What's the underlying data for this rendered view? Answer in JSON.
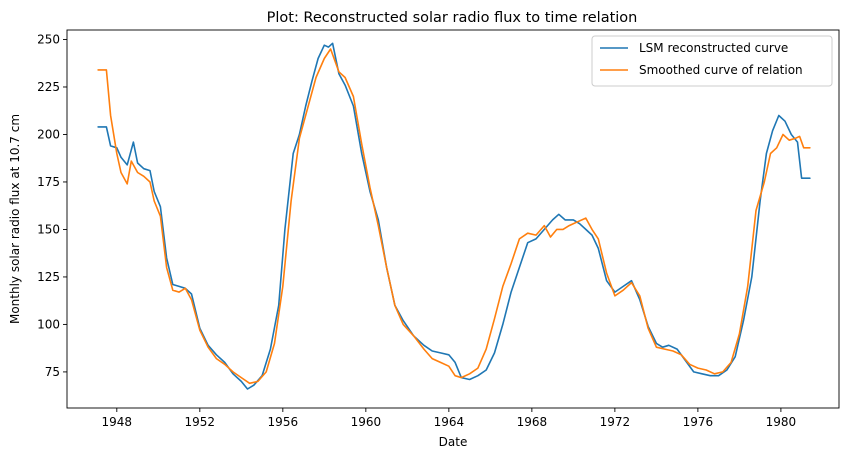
{
  "chart_data": {
    "type": "line",
    "title": "Plot: Reconstructed solar radio flux to time relation",
    "xlabel": "Date",
    "ylabel": "Monthly solar radio flux at 10.7 cm",
    "xlim": [
      1945.6,
      1982.8
    ],
    "ylim": [
      56,
      255
    ],
    "x_ticks": [
      1948,
      1952,
      1956,
      1960,
      1964,
      1968,
      1972,
      1976,
      1980
    ],
    "y_ticks": [
      75,
      100,
      125,
      150,
      175,
      200,
      225,
      250
    ],
    "grid": false,
    "legend_position": "top-right",
    "colors": {
      "series1": "#1f77b4",
      "series2": "#ff7f0e"
    },
    "series": [
      {
        "name": "LSM reconstructed curve",
        "x": [
          1947.1,
          1947.5,
          1947.7,
          1948.0,
          1948.2,
          1948.5,
          1948.8,
          1949.0,
          1949.3,
          1949.6,
          1949.8,
          1950.1,
          1950.4,
          1950.7,
          1951.0,
          1951.3,
          1951.6,
          1952.0,
          1952.4,
          1952.8,
          1953.2,
          1953.6,
          1954.0,
          1954.3,
          1954.6,
          1955.0,
          1955.4,
          1955.8,
          1956.1,
          1956.5,
          1956.8,
          1957.1,
          1957.4,
          1957.7,
          1958.0,
          1958.2,
          1958.4,
          1958.7,
          1959.0,
          1959.4,
          1959.8,
          1960.2,
          1960.6,
          1961.0,
          1961.4,
          1961.8,
          1962.3,
          1962.8,
          1963.2,
          1963.6,
          1964.0,
          1964.3,
          1964.6,
          1965.0,
          1965.4,
          1965.8,
          1966.2,
          1966.6,
          1967.0,
          1967.4,
          1967.8,
          1968.2,
          1968.6,
          1969.0,
          1969.3,
          1969.6,
          1970.0,
          1970.3,
          1970.6,
          1970.9,
          1971.2,
          1971.6,
          1972.0,
          1972.4,
          1972.8,
          1973.2,
          1973.6,
          1974.0,
          1974.3,
          1974.6,
          1975.0,
          1975.4,
          1975.8,
          1976.2,
          1976.6,
          1977.0,
          1977.4,
          1977.8,
          1978.2,
          1978.6,
          1979.0,
          1979.3,
          1979.6,
          1979.9,
          1980.2,
          1980.5,
          1980.8,
          1981.0,
          1981.4
        ],
        "y": [
          204,
          204,
          194,
          193,
          188,
          184,
          196,
          185,
          182,
          181,
          170,
          162,
          135,
          121,
          120,
          119,
          116,
          98,
          89,
          84,
          80,
          74,
          70,
          66,
          68,
          73,
          87,
          110,
          150,
          190,
          200,
          215,
          228,
          240,
          247,
          246,
          248,
          232,
          226,
          215,
          190,
          170,
          155,
          130,
          110,
          102,
          94,
          89,
          86,
          85,
          84,
          80,
          72,
          71,
          73,
          76,
          85,
          100,
          117,
          130,
          143,
          145,
          150,
          155,
          158,
          155,
          155,
          153,
          150,
          147,
          140,
          123,
          117,
          120,
          123,
          113,
          99,
          90,
          88,
          89,
          87,
          81,
          75,
          74,
          73,
          73,
          76,
          83,
          102,
          125,
          165,
          190,
          202,
          210,
          207,
          200,
          196,
          177,
          177
        ]
      },
      {
        "name": "Smoothed curve of relation",
        "x": [
          1947.1,
          1947.5,
          1947.7,
          1948.0,
          1948.2,
          1948.5,
          1948.7,
          1949.0,
          1949.3,
          1949.6,
          1949.8,
          1950.1,
          1950.4,
          1950.7,
          1951.0,
          1951.3,
          1951.6,
          1952.0,
          1952.4,
          1952.8,
          1953.2,
          1953.6,
          1954.0,
          1954.4,
          1954.8,
          1955.2,
          1955.6,
          1956.0,
          1956.4,
          1956.8,
          1957.2,
          1957.6,
          1958.0,
          1958.3,
          1958.7,
          1959.0,
          1959.4,
          1959.8,
          1960.2,
          1960.6,
          1961.0,
          1961.4,
          1961.8,
          1962.3,
          1962.8,
          1963.2,
          1963.6,
          1964.0,
          1964.3,
          1964.6,
          1965.0,
          1965.4,
          1965.8,
          1966.2,
          1966.6,
          1967.0,
          1967.4,
          1967.8,
          1968.2,
          1968.6,
          1968.9,
          1969.2,
          1969.5,
          1969.8,
          1970.2,
          1970.6,
          1970.9,
          1971.2,
          1971.6,
          1972.0,
          1972.4,
          1972.8,
          1973.2,
          1973.6,
          1974.0,
          1974.4,
          1974.8,
          1975.2,
          1975.6,
          1976.0,
          1976.4,
          1976.8,
          1977.2,
          1977.6,
          1978.0,
          1978.4,
          1978.8,
          1979.2,
          1979.5,
          1979.8,
          1980.1,
          1980.4,
          1980.7,
          1980.9,
          1981.1,
          1981.4
        ],
        "y": [
          234,
          234,
          210,
          190,
          180,
          174,
          186,
          180,
          178,
          175,
          165,
          157,
          130,
          118,
          117,
          119,
          113,
          97,
          88,
          82,
          79,
          75,
          72,
          69,
          70,
          75,
          90,
          120,
          165,
          198,
          214,
          230,
          240,
          245,
          233,
          230,
          220,
          195,
          172,
          152,
          130,
          110,
          100,
          94,
          87,
          82,
          80,
          78,
          73,
          72,
          74,
          77,
          87,
          103,
          120,
          132,
          145,
          148,
          147,
          152,
          146,
          150,
          150,
          152,
          154,
          156,
          150,
          145,
          127,
          115,
          118,
          122,
          115,
          98,
          88,
          87,
          86,
          84,
          79,
          77,
          76,
          74,
          75,
          80,
          95,
          120,
          160,
          175,
          190,
          193,
          200,
          197,
          198,
          199,
          193,
          193
        ]
      }
    ]
  }
}
